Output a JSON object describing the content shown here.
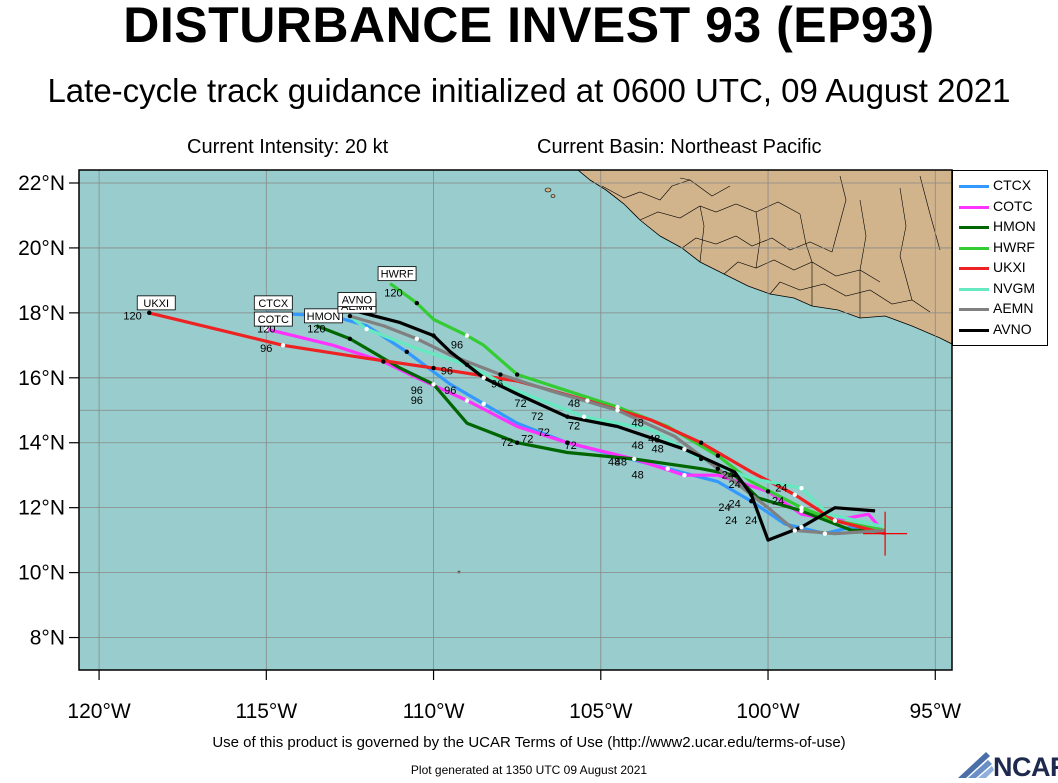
{
  "title": "DISTURBANCE INVEST 93 (EP93)",
  "subtitle": "Late-cycle track guidance initialized at 0600 UTC, 09 August 2021",
  "current_intensity": "Current Intensity: 20 kt",
  "current_basin": "Current Basin: Northeast Pacific",
  "terms": "Use of this product is governed by the UCAR Terms of Use (http://www2.ucar.edu/terms-of-use)",
  "generated": "Plot generated at 1350 UTC   09 August 2021",
  "logo": "NCAR",
  "colors": {
    "ocean": "#99cccc",
    "land": "#d2b48c",
    "grid": "#888888"
  },
  "chart_data": {
    "type": "line",
    "title": "DISTURBANCE INVEST 93 (EP93)",
    "x_ticks": [
      "120°W",
      "115°W",
      "110°W",
      "105°W",
      "100°W",
      "95°W"
    ],
    "y_ticks": [
      "8°N",
      "10°N",
      "12°N",
      "14°N",
      "16°N",
      "18°N",
      "20°N",
      "22°N"
    ],
    "xlim": [
      -120.6,
      -94.5
    ],
    "ylim": [
      7.0,
      22.4
    ],
    "x_tick_values": [
      -120,
      -115,
      -110,
      -105,
      -100,
      -95
    ],
    "y_tick_values": [
      8,
      10,
      12,
      14,
      16,
      18,
      20,
      22
    ],
    "legend_position": "top-right",
    "current_position": {
      "lon": -96.5,
      "lat": 11.2
    },
    "series": [
      {
        "name": "CTCX",
        "color": "#3399ff",
        "end_label": "CTCX",
        "points": [
          [
            -96.5,
            11.2
          ],
          [
            -97.5,
            11.4
          ],
          [
            -98.3,
            11.2
          ],
          [
            -99.5,
            11.5
          ],
          [
            -100.5,
            12.2
          ],
          [
            -101.5,
            12.8
          ],
          [
            -103,
            13.2
          ],
          [
            -104.5,
            13.6
          ],
          [
            -106,
            14.0
          ],
          [
            -107.5,
            14.6
          ],
          [
            -108.5,
            15.2
          ],
          [
            -109.5,
            15.8
          ],
          [
            -110.8,
            16.8
          ],
          [
            -112,
            17.6
          ],
          [
            -113,
            17.9
          ],
          [
            -115,
            18.0
          ]
        ],
        "hour_labels": []
      },
      {
        "name": "COTC",
        "color": "#ff33ff",
        "end_label": "COTC",
        "points": [
          [
            -96.5,
            11.2
          ],
          [
            -97,
            11.8
          ],
          [
            -98,
            11.6
          ],
          [
            -99,
            11.8
          ],
          [
            -100,
            12.5
          ],
          [
            -101.5,
            13.0
          ],
          [
            -102.5,
            13.0
          ],
          [
            -104,
            13.5
          ],
          [
            -106,
            14.0
          ],
          [
            -107.5,
            14.5
          ],
          [
            -109,
            15.3
          ],
          [
            -110.5,
            16.0
          ],
          [
            -111.5,
            16.5
          ],
          [
            -113,
            17.0
          ],
          [
            -115,
            17.5
          ]
        ],
        "hour_labels": []
      },
      {
        "name": "HMON",
        "color": "#006600",
        "end_label": "HMON",
        "points": [
          [
            -96.5,
            11.3
          ],
          [
            -97.5,
            11.3
          ],
          [
            -99,
            11.9
          ],
          [
            -100.3,
            12.3
          ],
          [
            -101,
            13.0
          ],
          [
            -102,
            13.2
          ],
          [
            -104,
            13.5
          ],
          [
            -106,
            13.7
          ],
          [
            -107.5,
            14.0
          ],
          [
            -109,
            14.6
          ],
          [
            -110,
            15.8
          ],
          [
            -111,
            16.3
          ],
          [
            -112.5,
            17.2
          ],
          [
            -113.5,
            17.6
          ]
        ],
        "hour_labels": []
      },
      {
        "name": "HWRF",
        "color": "#33cc33",
        "end_label": "HWRF",
        "points": [
          [
            -96.5,
            11.3
          ],
          [
            -98,
            11.6
          ],
          [
            -99,
            12.0
          ],
          [
            -100.5,
            12.8
          ],
          [
            -101.5,
            13.6
          ],
          [
            -103,
            14.5
          ],
          [
            -104.5,
            15.1
          ],
          [
            -106,
            15.6
          ],
          [
            -107.5,
            16.1
          ],
          [
            -108.5,
            17.0
          ],
          [
            -109,
            17.3
          ],
          [
            -110,
            17.8
          ],
          [
            -110.5,
            18.3
          ],
          [
            -111.3,
            18.9
          ]
        ],
        "hour_labels": []
      },
      {
        "name": "UKXI",
        "color": "#ee2222",
        "end_label": "UKXI",
        "points": [
          [
            -96.5,
            11.2
          ],
          [
            -98,
            11.6
          ],
          [
            -99.2,
            12.4
          ],
          [
            -100.5,
            13.1
          ],
          [
            -102,
            14.0
          ],
          [
            -103.5,
            14.7
          ],
          [
            -105.4,
            15.3
          ],
          [
            -107.5,
            15.9
          ],
          [
            -110,
            16.3
          ],
          [
            -112,
            16.6
          ],
          [
            -114.5,
            17.0
          ],
          [
            -116.5,
            17.5
          ],
          [
            -118.5,
            18.0
          ]
        ],
        "hour_labels": []
      },
      {
        "name": "NVGM",
        "color": "#66e8c0",
        "end_label": "NVGM",
        "points": [
          [
            -96.5,
            11.4
          ],
          [
            -98.2,
            11.8
          ],
          [
            -99,
            12.6
          ],
          [
            -100.5,
            12.9
          ],
          [
            -102,
            13.5
          ],
          [
            -103.5,
            14.4
          ],
          [
            -105.5,
            14.8
          ],
          [
            -107.5,
            15.6
          ],
          [
            -109,
            16.4
          ],
          [
            -110.5,
            16.9
          ],
          [
            -112,
            17.5
          ],
          [
            -112.5,
            17.9
          ]
        ],
        "hour_labels": []
      },
      {
        "name": "AEMN",
        "color": "#808080",
        "end_label": "AEMN",
        "points": [
          [
            -96.5,
            11.3
          ],
          [
            -98,
            11.2
          ],
          [
            -99.2,
            11.3
          ],
          [
            -100,
            12.0
          ],
          [
            -101.5,
            13.2
          ],
          [
            -102.8,
            14.2
          ],
          [
            -104.5,
            15.0
          ],
          [
            -106.5,
            15.6
          ],
          [
            -108,
            16.1
          ],
          [
            -109.5,
            16.7
          ],
          [
            -110.5,
            17.2
          ],
          [
            -111.5,
            17.6
          ],
          [
            -112.5,
            17.9
          ]
        ],
        "hour_labels": []
      },
      {
        "name": "AVNO",
        "color": "#000000",
        "end_label": "AVNO",
        "points": [
          [
            -96.8,
            11.9
          ],
          [
            -98,
            12.0
          ],
          [
            -99,
            11.4
          ],
          [
            -100,
            11.0
          ],
          [
            -100.5,
            12.4
          ],
          [
            -101,
            13.1
          ],
          [
            -102.5,
            13.8
          ],
          [
            -104.5,
            14.5
          ],
          [
            -106,
            14.8
          ],
          [
            -107.5,
            15.5
          ],
          [
            -108.5,
            16.0
          ],
          [
            -109.5,
            16.8
          ],
          [
            -110,
            17.3
          ],
          [
            -111,
            17.7
          ],
          [
            -112.5,
            18.1
          ]
        ],
        "hour_labels": []
      }
    ],
    "forecast_hour_labels": [
      {
        "text": "120",
        "lon": -119,
        "lat": 17.8
      },
      {
        "text": "120",
        "lon": -115,
        "lat": 17.8
      },
      {
        "text": "120",
        "lon": -115,
        "lat": 17.4
      },
      {
        "text": "120",
        "lon": -113.5,
        "lat": 17.4
      },
      {
        "text": "120",
        "lon": -111.2,
        "lat": 18.5
      },
      {
        "text": "96",
        "lon": -115,
        "lat": 16.8
      },
      {
        "text": "96",
        "lon": -109.3,
        "lat": 16.9
      },
      {
        "text": "96",
        "lon": -108.1,
        "lat": 15.7
      },
      {
        "text": "96",
        "lon": -109.5,
        "lat": 15.5
      },
      {
        "text": "96",
        "lon": -110.5,
        "lat": 15.5
      },
      {
        "text": "96",
        "lon": -110.5,
        "lat": 15.2
      },
      {
        "text": "96",
        "lon": -109.6,
        "lat": 16.1
      },
      {
        "text": "72",
        "lon": -107.4,
        "lat": 15.1
      },
      {
        "text": "72",
        "lon": -106.9,
        "lat": 14.7
      },
      {
        "text": "72",
        "lon": -106.7,
        "lat": 14.2
      },
      {
        "text": "72",
        "lon": -107.2,
        "lat": 14.0
      },
      {
        "text": "72",
        "lon": -107.8,
        "lat": 13.9
      },
      {
        "text": "72",
        "lon": -105.8,
        "lat": 14.4
      },
      {
        "text": "72",
        "lon": -105.9,
        "lat": 13.8
      },
      {
        "text": "48",
        "lon": -105.8,
        "lat": 15.1
      },
      {
        "text": "48",
        "lon": -103.9,
        "lat": 14.5
      },
      {
        "text": "48",
        "lon": -103.4,
        "lat": 14.0
      },
      {
        "text": "48",
        "lon": -103.3,
        "lat": 13.7
      },
      {
        "text": "48",
        "lon": -103.9,
        "lat": 13.8
      },
      {
        "text": "48",
        "lon": -104.6,
        "lat": 13.3
      },
      {
        "text": "48",
        "lon": -104.4,
        "lat": 13.3
      },
      {
        "text": "48",
        "lon": -103.9,
        "lat": 12.9
      },
      {
        "text": "24",
        "lon": -101.2,
        "lat": 12.9
      },
      {
        "text": "24",
        "lon": -101,
        "lat": 12.6
      },
      {
        "text": "24",
        "lon": -99.6,
        "lat": 12.5
      },
      {
        "text": "24",
        "lon": -99.7,
        "lat": 12.1
      },
      {
        "text": "24",
        "lon": -101.3,
        "lat": 11.9
      },
      {
        "text": "24",
        "lon": -101.1,
        "lat": 11.5
      },
      {
        "text": "24",
        "lon": -100.5,
        "lat": 11.5
      },
      {
        "text": "24",
        "lon": -101,
        "lat": 12.0
      }
    ]
  }
}
